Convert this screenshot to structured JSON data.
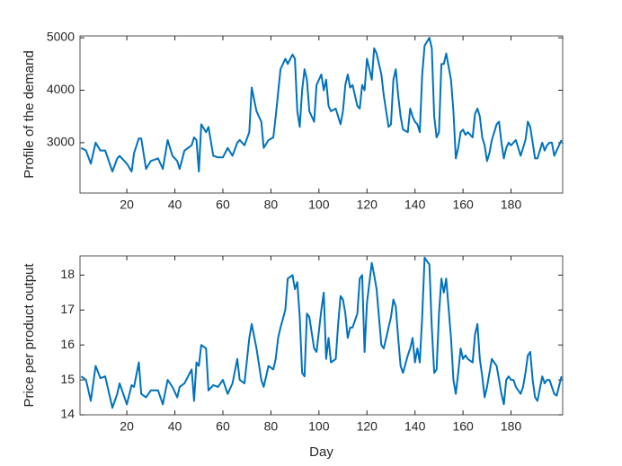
{
  "chart_data": [
    {
      "type": "line",
      "ylabel": "Profile of the demand",
      "x": [
        1,
        3,
        5,
        7,
        9,
        11,
        14,
        16,
        17,
        20,
        22,
        23,
        25,
        26,
        28,
        30,
        33,
        35,
        37,
        39,
        41,
        42,
        44,
        47,
        48,
        49,
        50,
        51,
        53,
        54,
        56,
        58,
        60,
        62,
        64,
        66,
        67,
        69,
        71,
        72,
        74,
        76,
        77,
        79,
        81,
        82,
        83,
        84,
        86,
        87,
        89,
        90,
        91,
        92,
        93,
        94,
        95,
        96,
        98,
        99,
        101,
        102,
        103,
        104,
        105,
        107,
        108,
        109,
        110,
        111,
        112,
        113,
        114,
        116,
        117,
        118,
        119,
        120,
        122,
        123,
        124,
        125,
        126,
        127,
        129,
        130,
        131,
        132,
        133,
        134,
        135,
        137,
        138,
        139,
        140,
        141,
        142,
        143,
        144,
        146,
        147,
        148,
        149,
        150,
        151,
        152,
        153,
        155,
        156,
        157,
        158,
        159,
        160,
        161,
        162,
        164,
        165,
        166,
        167,
        168,
        169,
        170,
        171,
        172,
        174,
        175,
        176,
        177,
        178,
        179,
        180,
        181,
        182,
        184,
        185,
        186,
        187,
        188,
        189,
        190,
        191,
        193,
        194,
        195,
        196,
        197,
        198,
        199,
        201
      ],
      "series": [
        {
          "color": "#0072bd",
          "values": [
            2900,
            2850,
            2600,
            3000,
            2850,
            2850,
            2450,
            2700,
            2750,
            2600,
            2450,
            2800,
            3080,
            3080,
            2500,
            2650,
            2700,
            2500,
            3050,
            2750,
            2650,
            2500,
            2850,
            2950,
            3100,
            3050,
            2450,
            3350,
            3200,
            3300,
            2750,
            2720,
            2720,
            2900,
            2750,
            3000,
            3050,
            2950,
            3200,
            4050,
            3600,
            3400,
            2900,
            3050,
            3100,
            3500,
            3950,
            4400,
            4600,
            4500,
            4680,
            4600,
            3600,
            3300,
            4000,
            4400,
            4200,
            3600,
            3400,
            4100,
            4300,
            4000,
            4200,
            3700,
            3600,
            3650,
            3500,
            3350,
            3600,
            4100,
            4300,
            4050,
            4100,
            3700,
            3650,
            4100,
            4000,
            4600,
            4200,
            4800,
            4700,
            4500,
            4300,
            3900,
            3300,
            3350,
            4200,
            4400,
            3900,
            3500,
            3250,
            3200,
            3650,
            3500,
            3400,
            3350,
            3200,
            4300,
            4850,
            5000,
            4800,
            3500,
            3100,
            3200,
            4500,
            4500,
            4700,
            4200,
            3600,
            2700,
            2900,
            3200,
            3250,
            3150,
            3200,
            3100,
            3550,
            3650,
            3500,
            3100,
            2950,
            2650,
            2800,
            3050,
            3350,
            3400,
            3000,
            2700,
            2900,
            3000,
            2950,
            3000,
            3050,
            2750,
            2900,
            3050,
            3400,
            3300,
            3000,
            2700,
            2700,
            3000,
            2850,
            2950,
            3000,
            3000,
            2750,
            2850,
            3050
          ]
        }
      ],
      "xlim": [
        0.5,
        201.5
      ],
      "xticks": [
        20,
        40,
        60,
        80,
        100,
        120,
        140,
        160,
        180
      ],
      "ylim": [
        2040,
        5035
      ],
      "yticks": [
        3000,
        4000,
        5000
      ]
    },
    {
      "type": "line",
      "ylabel": "Price per product output",
      "xlabel": "Day",
      "x": [
        1,
        3,
        5,
        7,
        9,
        11,
        14,
        16,
        17,
        20,
        22,
        23,
        25,
        26,
        28,
        30,
        33,
        35,
        37,
        39,
        41,
        42,
        44,
        47,
        48,
        49,
        50,
        51,
        53,
        54,
        56,
        58,
        60,
        62,
        64,
        66,
        67,
        69,
        71,
        72,
        74,
        76,
        77,
        79,
        81,
        82,
        83,
        84,
        86,
        87,
        89,
        90,
        91,
        92,
        93,
        94,
        95,
        96,
        98,
        99,
        101,
        102,
        103,
        104,
        105,
        107,
        108,
        109,
        110,
        111,
        112,
        113,
        114,
        116,
        117,
        118,
        119,
        120,
        122,
        123,
        124,
        125,
        126,
        127,
        129,
        130,
        131,
        132,
        133,
        134,
        135,
        137,
        138,
        139,
        140,
        141,
        142,
        143,
        144,
        146,
        147,
        148,
        149,
        150,
        151,
        152,
        153,
        155,
        156,
        157,
        158,
        159,
        160,
        161,
        162,
        164,
        165,
        166,
        167,
        168,
        169,
        170,
        171,
        172,
        174,
        175,
        176,
        177,
        178,
        179,
        180,
        181,
        182,
        184,
        185,
        186,
        187,
        188,
        189,
        190,
        191,
        193,
        194,
        195,
        196,
        197,
        198,
        199,
        201
      ],
      "series": [
        {
          "color": "#0072bd",
          "values": [
            15.1,
            15.0,
            14.4,
            15.4,
            15.05,
            15.1,
            14.2,
            14.6,
            14.9,
            14.3,
            14.85,
            14.8,
            15.5,
            14.6,
            14.5,
            14.7,
            14.7,
            14.3,
            15.0,
            14.8,
            14.5,
            14.8,
            14.9,
            15.3,
            14.4,
            15.5,
            15.4,
            16.0,
            15.9,
            14.7,
            14.85,
            14.8,
            15.0,
            14.6,
            14.9,
            15.6,
            15.0,
            14.9,
            16.2,
            16.6,
            15.9,
            15.0,
            14.8,
            15.4,
            15.3,
            15.6,
            16.2,
            16.5,
            17.0,
            17.9,
            18.0,
            17.6,
            17.8,
            16.8,
            15.2,
            15.1,
            16.9,
            16.8,
            15.9,
            15.8,
            17.0,
            17.5,
            15.6,
            16.2,
            15.5,
            15.6,
            16.6,
            17.4,
            17.3,
            16.9,
            16.2,
            16.5,
            16.5,
            16.9,
            17.9,
            18.0,
            15.8,
            17.2,
            18.35,
            18.0,
            17.6,
            16.8,
            16.0,
            15.9,
            16.5,
            16.8,
            17.3,
            17.1,
            16.2,
            15.4,
            15.2,
            15.7,
            15.9,
            16.2,
            15.5,
            15.9,
            15.5,
            16.8,
            18.5,
            18.3,
            16.5,
            15.2,
            15.3,
            16.9,
            17.9,
            17.5,
            17.9,
            16.2,
            15.0,
            14.6,
            15.2,
            15.9,
            15.6,
            15.7,
            15.6,
            15.5,
            16.3,
            16.6,
            15.6,
            15.1,
            14.5,
            14.8,
            15.2,
            15.6,
            15.4,
            15.0,
            14.6,
            14.3,
            15.0,
            15.1,
            15.0,
            15.0,
            14.8,
            14.6,
            14.8,
            15.2,
            15.7,
            15.8,
            15.0,
            14.5,
            14.4,
            15.1,
            14.9,
            15.0,
            15.0,
            14.8,
            14.6,
            14.55,
            15.1
          ]
        }
      ],
      "xlim": [
        0.5,
        201.5
      ],
      "xticks": [
        20,
        40,
        60,
        80,
        100,
        120,
        140,
        160,
        180
      ],
      "ylim": [
        14,
        18.55
      ],
      "yticks": [
        14,
        15,
        16,
        17,
        18
      ]
    }
  ]
}
